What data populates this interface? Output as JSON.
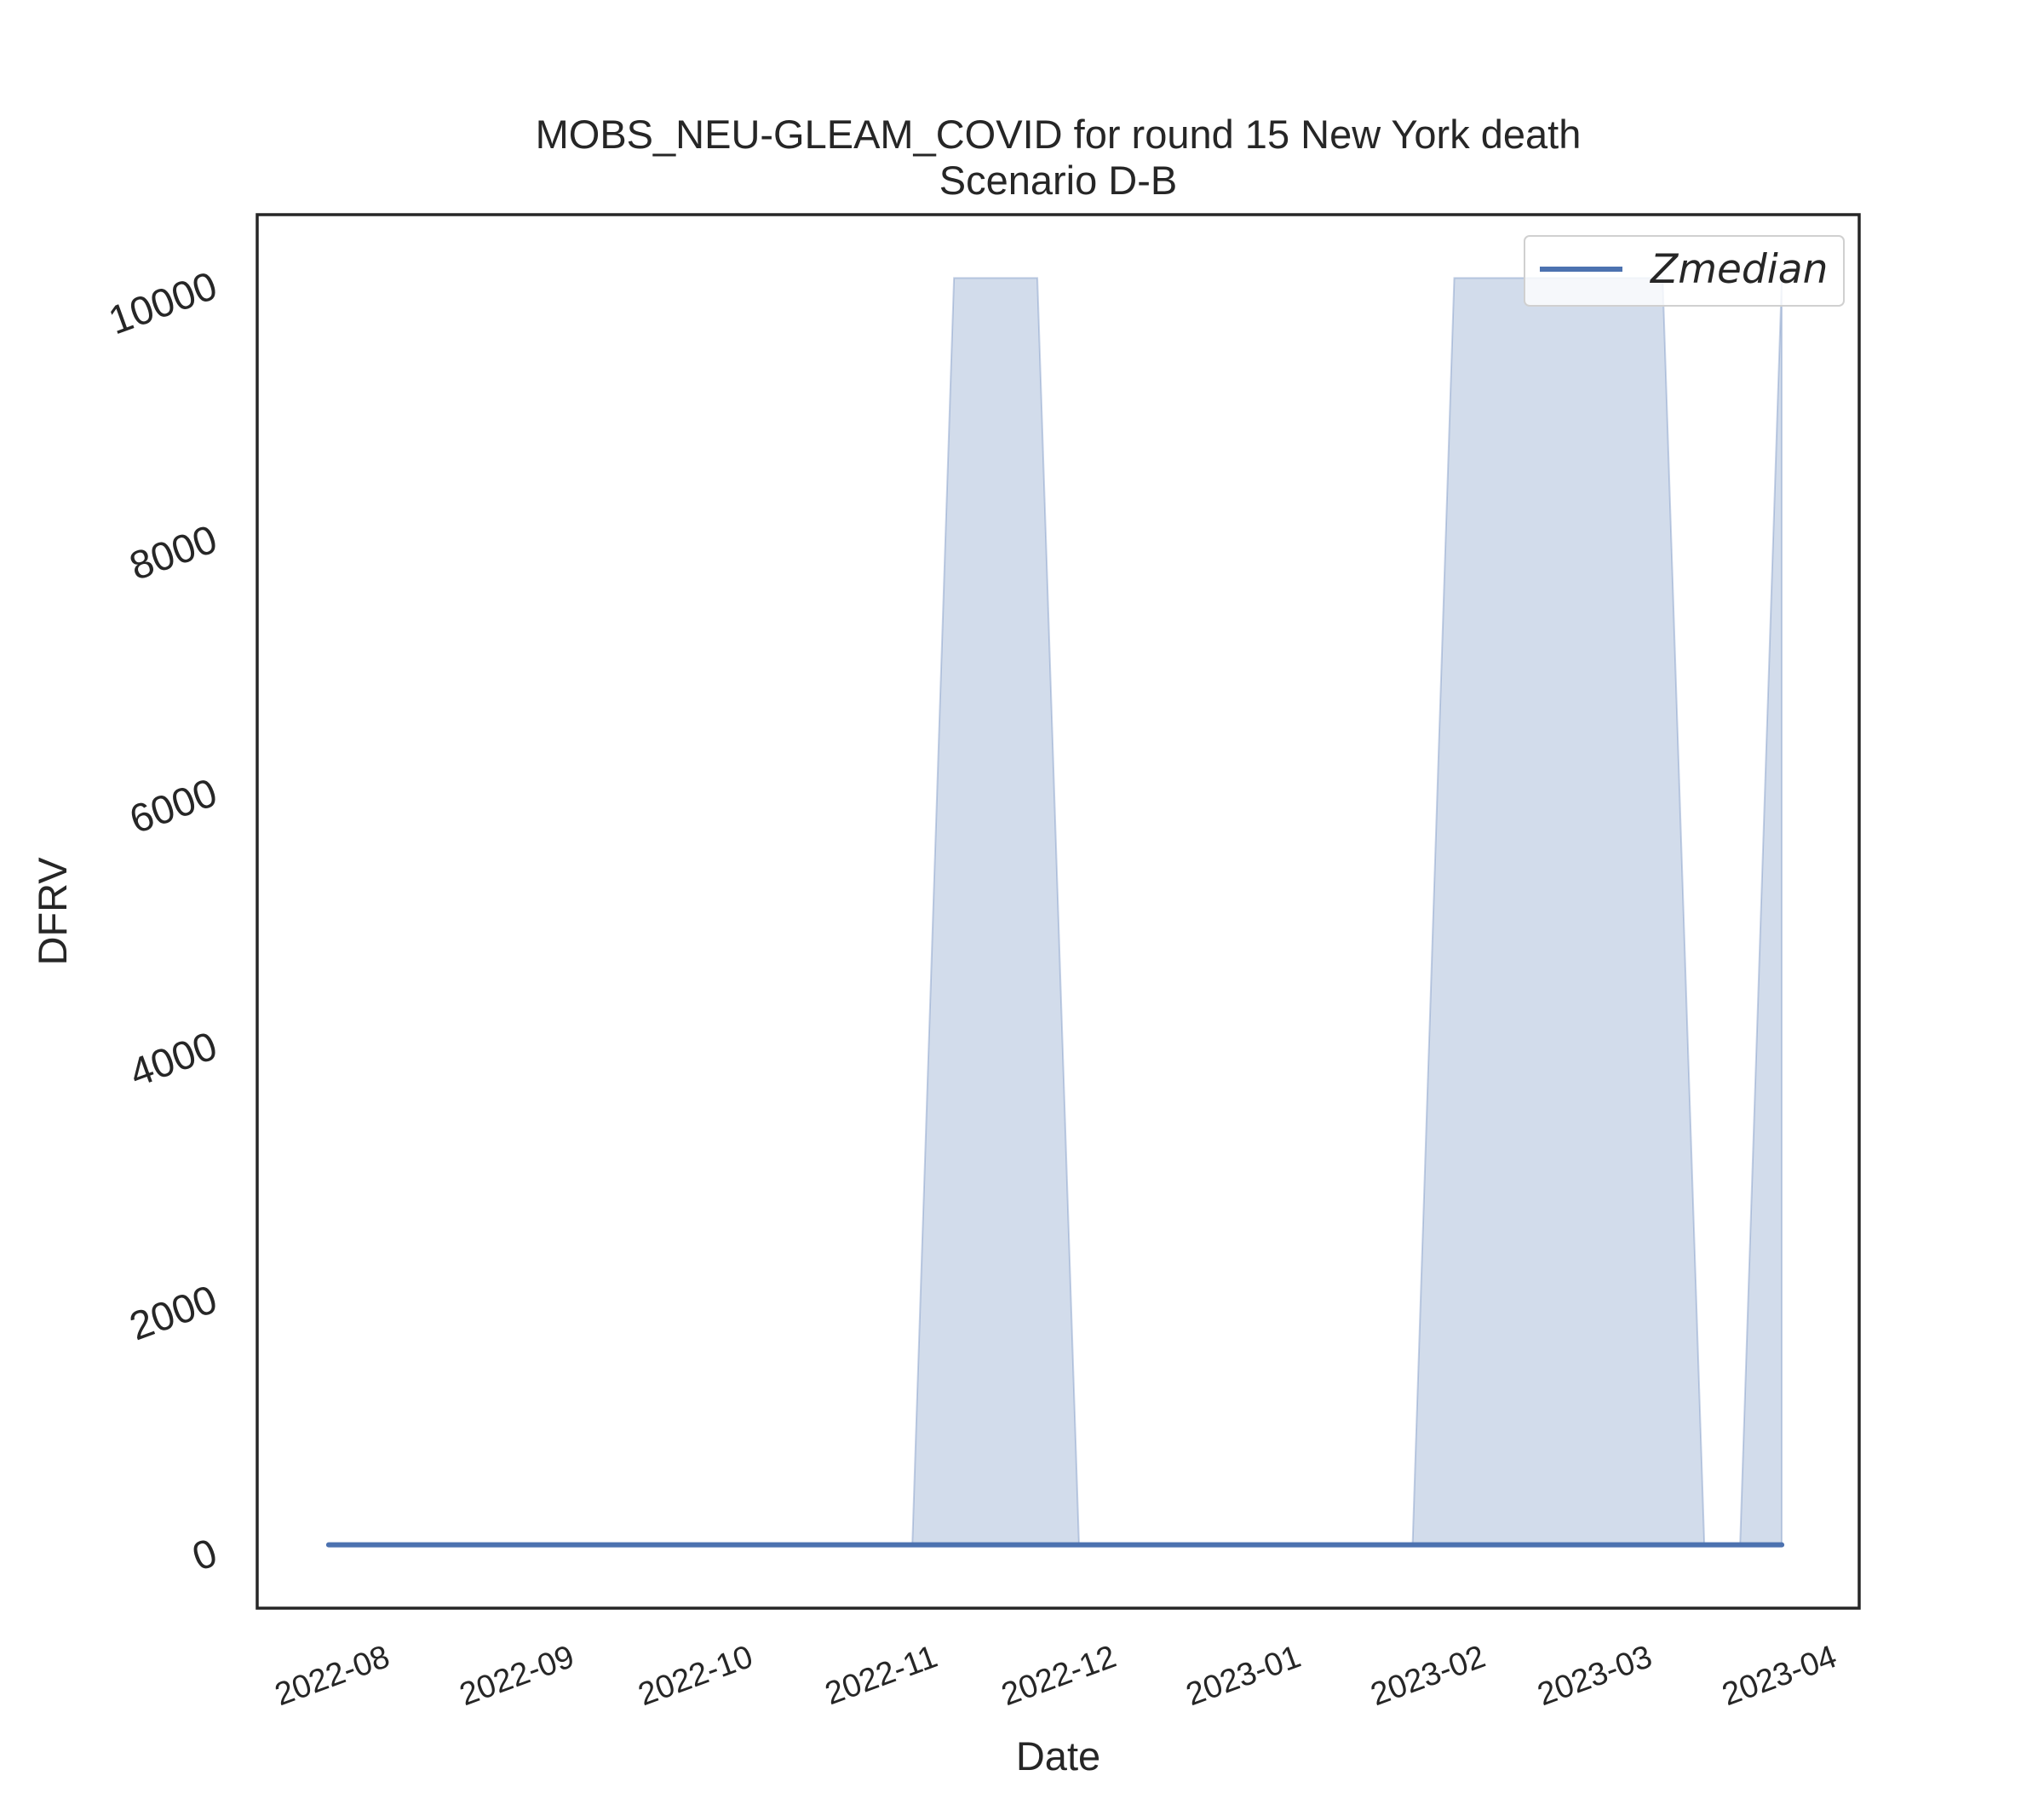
{
  "chart_data": {
    "type": "line",
    "title": "MOBS_NEU-GLEAM_COVID for round 15 New York death",
    "subtitle": "Scenario D-B",
    "xlabel": "Date",
    "ylabel": "DFRV",
    "ylim": [
      -500,
      10500
    ],
    "yticks": [
      0,
      2000,
      4000,
      6000,
      8000,
      10000
    ],
    "xlim": [
      "2022-07-12",
      "2023-04-07"
    ],
    "xticks": [
      "2022-08-01",
      "2022-09-01",
      "2022-10-01",
      "2022-11-01",
      "2022-12-01",
      "2023-01-01",
      "2023-02-01",
      "2023-03-01",
      "2023-04-01"
    ],
    "xtick_labels": [
      "2022-08",
      "2022-09",
      "2022-10",
      "2022-11",
      "2022-12",
      "2023-01",
      "2023-02",
      "2023-03",
      "2023-04"
    ],
    "grid": false,
    "legend_position": "top-right",
    "series": [
      {
        "name": "Zmedian",
        "color": "#4c72b0",
        "x": [
          "2022-07-24",
          "2023-03-25"
        ],
        "y": [
          0,
          0
        ]
      }
    ],
    "band": {
      "color": "#4c72b0",
      "opacity": 0.25,
      "x": [
        "2022-07-24",
        "2022-10-30",
        "2022-11-06",
        "2022-11-20",
        "2022-11-27",
        "2023-01-22",
        "2023-01-29",
        "2023-03-05",
        "2023-03-12",
        "2023-03-18",
        "2023-03-25"
      ],
      "lower": [
        0,
        0,
        0,
        0,
        0,
        0,
        0,
        0,
        0,
        0,
        0
      ],
      "upper": [
        0,
        0,
        10000,
        10000,
        0,
        0,
        10000,
        10000,
        0,
        0,
        10000
      ]
    }
  }
}
